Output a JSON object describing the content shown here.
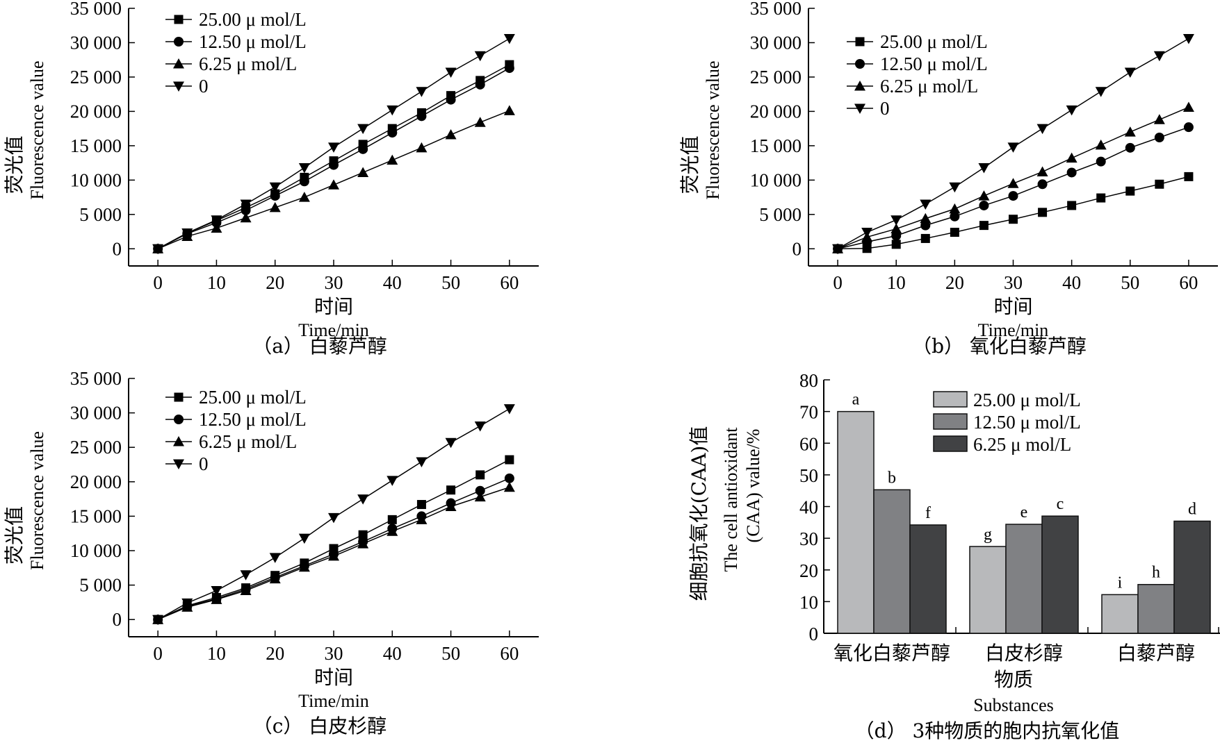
{
  "chart_data": [
    {
      "id": "a",
      "type": "line",
      "caption": "（a） 白藜芦醇",
      "ylabel_cn": "荧光值",
      "ylabel": "Fluorescence value",
      "xlabel_cn": "时间",
      "xlabel": "Time/min",
      "x": [
        0,
        5,
        10,
        15,
        20,
        25,
        30,
        35,
        40,
        45,
        50,
        55,
        60
      ],
      "xticks": [
        0,
        10,
        20,
        30,
        40,
        50,
        60
      ],
      "yticks": [
        0,
        5000,
        10000,
        15000,
        20000,
        25000,
        30000,
        35000
      ],
      "ytick_labels": [
        "0",
        "5 000",
        "10 000",
        "15 000",
        "20 000",
        "25 000",
        "30 000",
        "35 000"
      ],
      "xlim": [
        -5,
        65
      ],
      "ylim": [
        -2500,
        35000
      ],
      "legend_position": "top-left",
      "series": [
        {
          "name": "25.00 μ mol/L",
          "marker": "square",
          "values": [
            0,
            2300,
            4100,
            6000,
            8000,
            10400,
            12800,
            15200,
            17500,
            19800,
            22300,
            24500,
            26800
          ]
        },
        {
          "name": "12.50 μ mol/L",
          "marker": "circle",
          "values": [
            0,
            2200,
            3800,
            5600,
            7700,
            9800,
            12200,
            14500,
            16900,
            19300,
            21700,
            23900,
            26300
          ]
        },
        {
          "name": "6.25 μ mol/L",
          "marker": "triangle-up",
          "values": [
            0,
            1800,
            3000,
            4500,
            6000,
            7500,
            9300,
            11100,
            12900,
            14700,
            16600,
            18400,
            20100
          ]
        },
        {
          "name": "0",
          "marker": "triangle-down",
          "values": [
            0,
            2300,
            4200,
            6500,
            9000,
            11800,
            14800,
            17500,
            20200,
            22900,
            25700,
            28100,
            30600
          ]
        }
      ]
    },
    {
      "id": "b",
      "type": "line",
      "caption": "（b） 氧化白藜芦醇",
      "ylabel_cn": "荧光值",
      "ylabel": "Fluorescence value",
      "xlabel_cn": "时间",
      "xlabel": "Time/min",
      "x": [
        0,
        5,
        10,
        15,
        20,
        25,
        30,
        35,
        40,
        45,
        50,
        55,
        60
      ],
      "xticks": [
        0,
        10,
        20,
        30,
        40,
        50,
        60
      ],
      "yticks": [
        0,
        5000,
        10000,
        15000,
        20000,
        25000,
        30000,
        35000
      ],
      "ytick_labels": [
        "0",
        "5 000",
        "10 000",
        "15 000",
        "20 000",
        "25 000",
        "30 000",
        "35 000"
      ],
      "xlim": [
        -5,
        65
      ],
      "ylim": [
        -2500,
        35000
      ],
      "legend_position": "top-left",
      "series": [
        {
          "name": "25.00 μ mol/L",
          "marker": "square",
          "values": [
            0,
            50,
            650,
            1500,
            2400,
            3400,
            4300,
            5300,
            6300,
            7400,
            8400,
            9400,
            10500
          ]
        },
        {
          "name": "12.50 μ mol/L",
          "marker": "circle",
          "values": [
            0,
            1000,
            1900,
            3400,
            4700,
            6300,
            7700,
            9400,
            11100,
            12700,
            14700,
            16200,
            17700
          ]
        },
        {
          "name": "6.25 μ mol/L",
          "marker": "triangle-up",
          "values": [
            0,
            1700,
            2900,
            4400,
            5800,
            7700,
            9500,
            11200,
            13200,
            15100,
            17000,
            18800,
            20600
          ]
        },
        {
          "name": "0",
          "marker": "triangle-down",
          "values": [
            0,
            2400,
            4200,
            6500,
            9000,
            11800,
            14800,
            17500,
            20200,
            22900,
            25700,
            28100,
            30600
          ]
        }
      ]
    },
    {
      "id": "c",
      "type": "line",
      "caption": "（c） 白皮杉醇",
      "ylabel_cn": "荧光值",
      "ylabel": "Fluorescence value",
      "xlabel_cn": "时间",
      "xlabel": "Time/min",
      "x": [
        0,
        5,
        10,
        15,
        20,
        25,
        30,
        35,
        40,
        45,
        50,
        55,
        60
      ],
      "xticks": [
        0,
        10,
        20,
        30,
        40,
        50,
        60
      ],
      "yticks": [
        0,
        5000,
        10000,
        15000,
        20000,
        25000,
        30000,
        35000
      ],
      "ytick_labels": [
        "0",
        "5 000",
        "10 000",
        "15 000",
        "20 000",
        "25 000",
        "30 000",
        "35 000"
      ],
      "xlim": [
        -5,
        65
      ],
      "ylim": [
        -2500,
        35000
      ],
      "legend_position": "top-left",
      "series": [
        {
          "name": "25.00 μ mol/L",
          "marker": "square",
          "values": [
            0,
            2000,
            3200,
            4600,
            6400,
            8200,
            10300,
            12300,
            14500,
            16700,
            18800,
            21000,
            23200
          ]
        },
        {
          "name": "12.50 μ mol/L",
          "marker": "circle",
          "values": [
            0,
            1900,
            3000,
            4400,
            6100,
            7800,
            9500,
            11300,
            13200,
            15000,
            16900,
            18700,
            20500
          ]
        },
        {
          "name": "6.25 μ mol/L",
          "marker": "triangle-up",
          "values": [
            0,
            1800,
            2900,
            4200,
            5900,
            7600,
            9200,
            11000,
            12800,
            14500,
            16400,
            17800,
            19200
          ]
        },
        {
          "name": "0",
          "marker": "triangle-down",
          "values": [
            0,
            2400,
            4200,
            6500,
            9000,
            11800,
            14800,
            17500,
            20200,
            22900,
            25700,
            28100,
            30600
          ]
        }
      ]
    },
    {
      "id": "d",
      "type": "bar",
      "caption": "（d） 3种物质的胞内抗氧化值",
      "ylabel_cn": "细胞抗氧化(CAA)值",
      "ylabel": "The cell antioxidant",
      "ylabel2": "(CAA) value/%",
      "xlabel_cn": "物质",
      "xlabel": "Substances",
      "categories": [
        "氧化白藜芦醇",
        "白皮杉醇",
        "白藜芦醇"
      ],
      "yticks": [
        0,
        10,
        20,
        30,
        40,
        50,
        60,
        70,
        80
      ],
      "ylim": [
        0,
        80
      ],
      "legend_position": "top-right",
      "series": [
        {
          "name": "25.00 μ mol/L",
          "color": "#b8b9bb",
          "values": [
            70.0,
            27.4,
            12.2
          ],
          "labels": [
            "a",
            "g",
            "i"
          ]
        },
        {
          "name": "12.50 μ mol/L",
          "color": "#808184",
          "values": [
            45.3,
            34.4,
            15.4
          ],
          "labels": [
            "b",
            "e",
            "h"
          ]
        },
        {
          "name": "6.25 μ mol/L",
          "color": "#414244",
          "values": [
            34.2,
            37.0,
            35.4
          ],
          "labels": [
            "f",
            "c",
            "d"
          ]
        }
      ]
    }
  ]
}
